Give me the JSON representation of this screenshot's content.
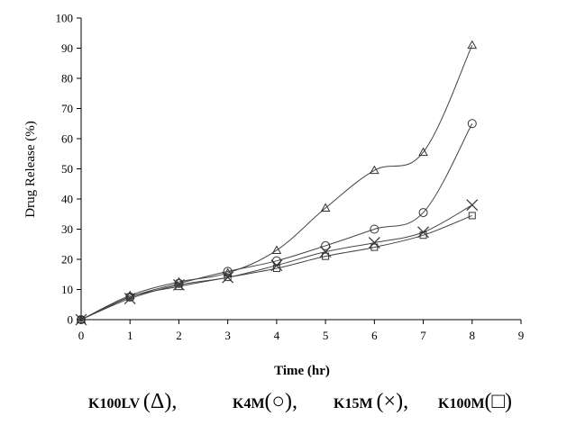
{
  "chart_data": {
    "type": "line",
    "xlabel": "Time (hr)",
    "ylabel": "Drug Release (%)",
    "xlim": [
      0,
      9
    ],
    "ylim": [
      0,
      100
    ],
    "xticks": [
      "0",
      "1",
      "2",
      "3",
      "4",
      "5",
      "6",
      "7",
      "8",
      "9"
    ],
    "yticks": [
      "0",
      "10",
      "20",
      "30",
      "40",
      "50",
      "60",
      "70",
      "80",
      "90",
      "100"
    ],
    "grid": false,
    "x": [
      0,
      1,
      2,
      3,
      4,
      5,
      6,
      7,
      8
    ],
    "series": [
      {
        "name": "K100LV",
        "marker": "triangle",
        "values": [
          0,
          8,
          12.5,
          15.5,
          23,
          37,
          49.5,
          55.5,
          91
        ]
      },
      {
        "name": "K4M",
        "marker": "circle",
        "values": [
          0,
          7.5,
          12,
          16,
          19.5,
          24.5,
          30,
          35.5,
          65
        ]
      },
      {
        "name": "K15M",
        "marker": "cross",
        "values": [
          0,
          7,
          11.5,
          14,
          18,
          22.5,
          25.5,
          29,
          38
        ]
      },
      {
        "name": "K100M",
        "marker": "square",
        "values": [
          0,
          7.5,
          11,
          14,
          17,
          21,
          24,
          28,
          34.5
        ]
      }
    ],
    "legend": {
      "placement": "bottom",
      "items": [
        {
          "label": "K100LV",
          "symbol": "(Δ),"
        },
        {
          "label": "K4M",
          "symbol": "(○),"
        },
        {
          "label": "K15M",
          "symbol": "(×),"
        },
        {
          "label": "K100M",
          "symbol": "(□)"
        }
      ]
    }
  }
}
